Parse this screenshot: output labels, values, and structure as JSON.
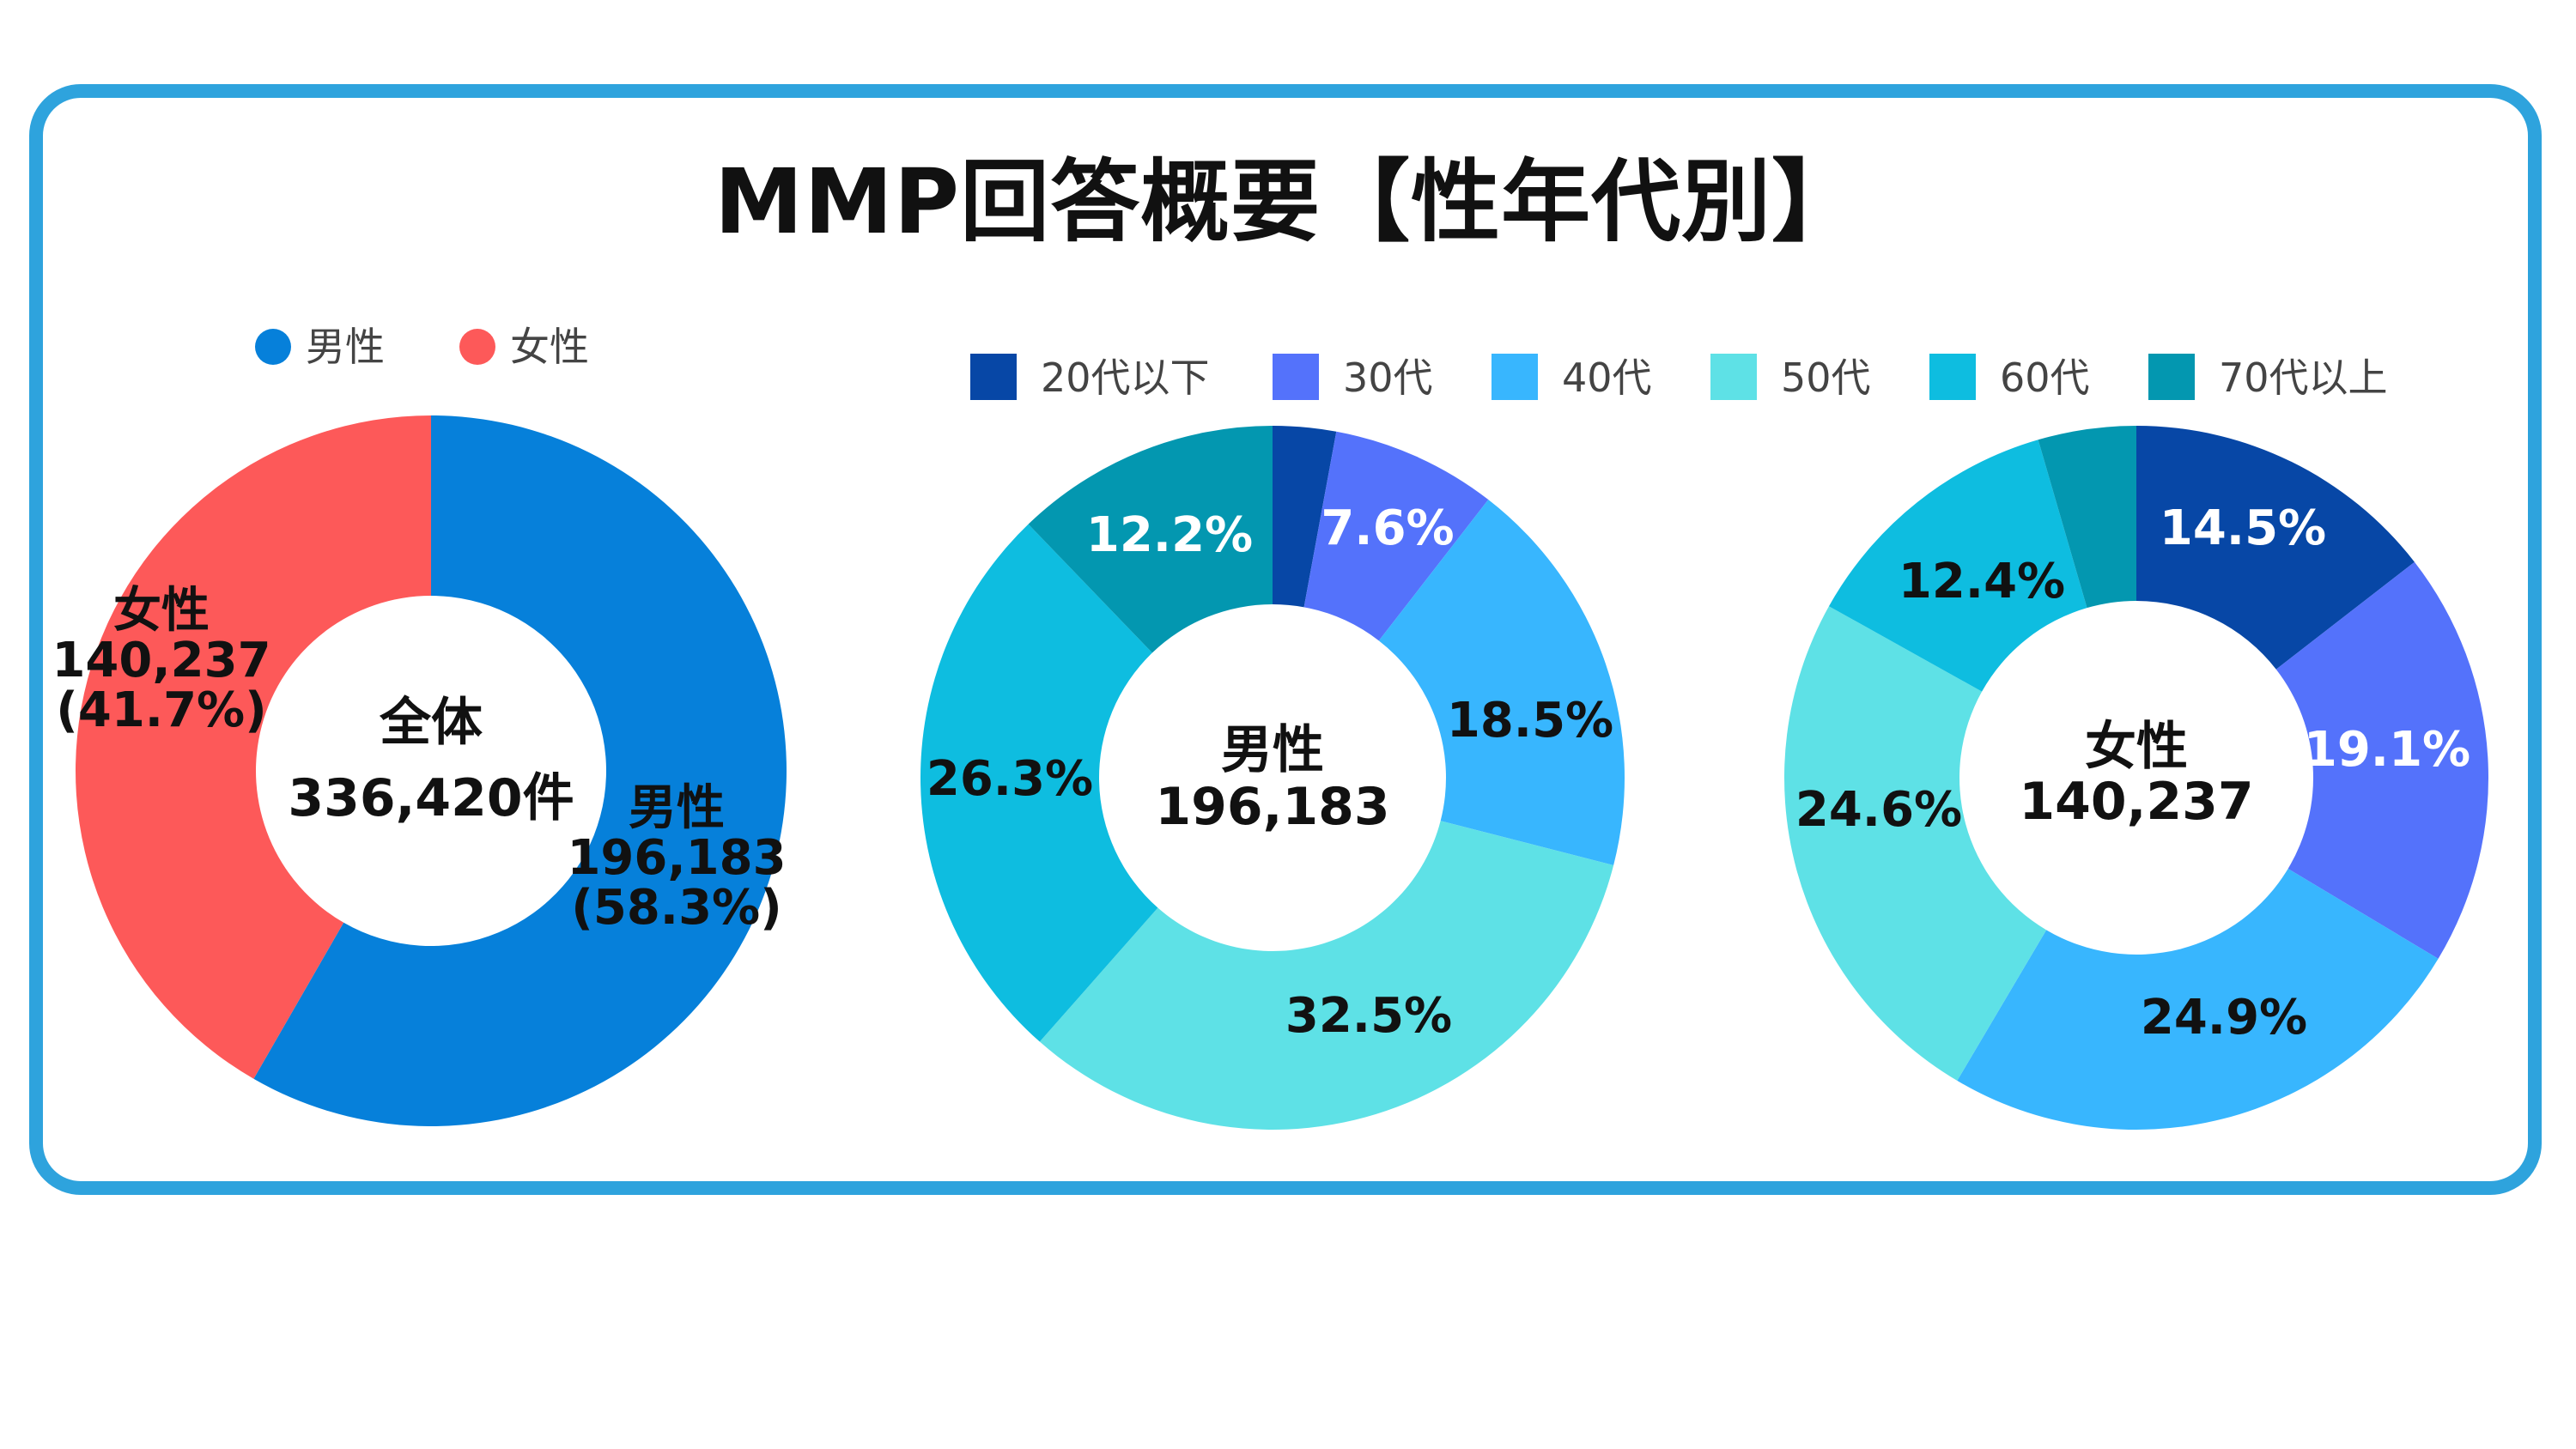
{
  "title": "MMP回答概要【性年代別】",
  "colors": {
    "frame": "#2ea3dd",
    "male": "#0680da",
    "female": "#fd5959",
    "age": [
      "#0747a6",
      "#5472fb",
      "#38b6fe",
      "#5ee1e6",
      "#0ebde0",
      "#0397b0"
    ]
  },
  "chart_data": [
    {
      "type": "pie",
      "donut": true,
      "categories": [
        "男性",
        "女性"
      ],
      "values": [
        196183,
        140237
      ],
      "percent_labels": [
        "(58.3%)",
        "(41.7%)"
      ],
      "value_labels": [
        "196,183",
        "140,237"
      ],
      "center": [
        "全体",
        "336,420件"
      ],
      "legend": [
        "男性",
        "女性"
      ],
      "legend_position": "top"
    },
    {
      "type": "pie",
      "donut": true,
      "categories": [
        "20代以下",
        "30代",
        "40代",
        "50代",
        "60代",
        "70代以上"
      ],
      "values": [
        2.9,
        7.6,
        18.5,
        32.5,
        26.3,
        12.2
      ],
      "labels": [
        "",
        "7.6%",
        "18.5%",
        "32.5%",
        "26.3%",
        "12.2%"
      ],
      "center": [
        "男性",
        "196,183"
      ],
      "legend": [
        "20代以下",
        "30代",
        "40代",
        "50代",
        "60代",
        "70代以上"
      ],
      "legend_position": "top"
    },
    {
      "type": "pie",
      "donut": true,
      "categories": [
        "20代以下",
        "30代",
        "40代",
        "50代",
        "60代",
        "70代以上"
      ],
      "values": [
        14.5,
        19.1,
        24.9,
        24.6,
        12.4,
        4.5
      ],
      "labels": [
        "14.5%",
        "19.1%",
        "24.9%",
        "24.6%",
        "12.4%",
        ""
      ],
      "center": [
        "女性",
        "140,237"
      ]
    }
  ]
}
